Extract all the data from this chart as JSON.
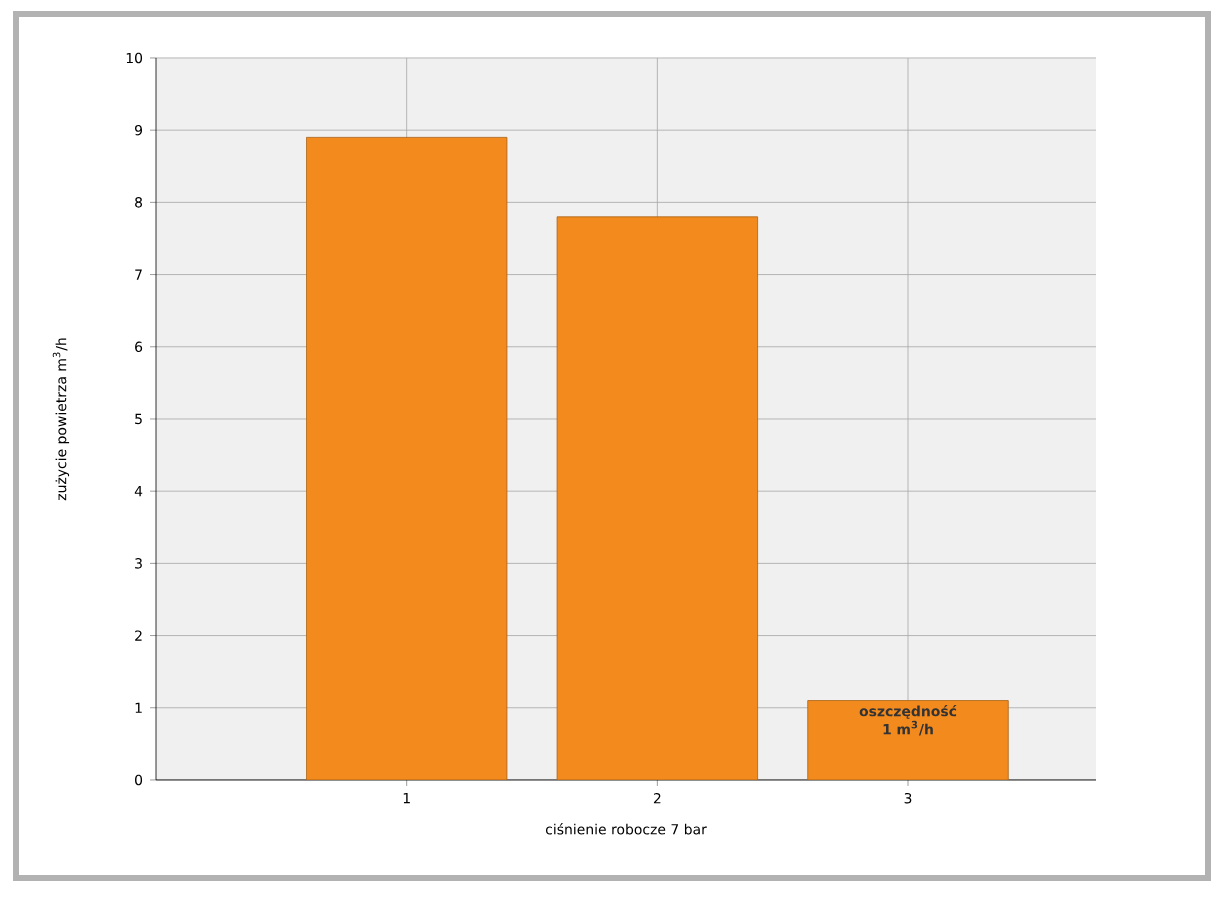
{
  "chart_data": {
    "type": "bar",
    "xlabel": "ciśnienie robocze 7 bar",
    "ylabel": "zużycie powietrza m$^{3}$/h",
    "categories": [
      "1",
      "2",
      "3"
    ],
    "values": [
      8.9,
      7.8,
      1.1
    ],
    "color": "#f28a1e",
    "ylim": [
      0,
      10
    ],
    "yticks": [
      0,
      1,
      2,
      3,
      4,
      5,
      6,
      7,
      8,
      9,
      10
    ],
    "grid": true,
    "annotations": [
      {
        "text": "oszczędność 1 m$^{3}$/h",
        "x": "3",
        "y": 1.1
      }
    ]
  }
}
